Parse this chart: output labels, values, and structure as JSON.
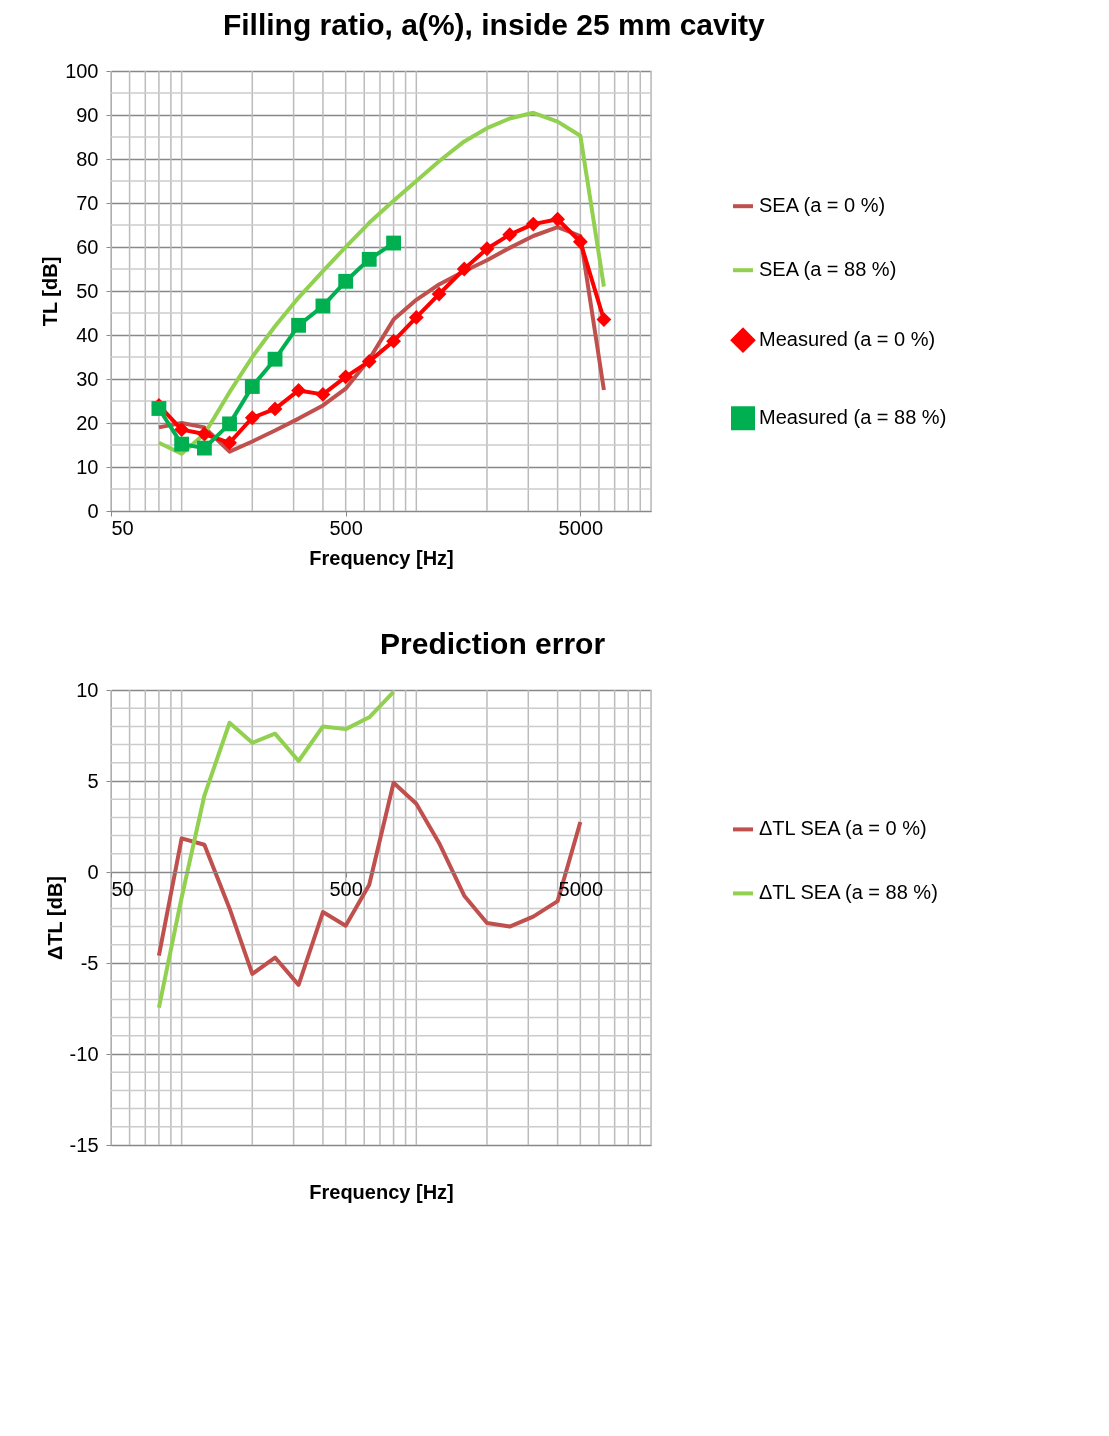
{
  "chart_data": [
    {
      "type": "line",
      "title": "Filling ratio, a(%), inside 25 mm cavity",
      "xlabel": "Frequency [Hz]",
      "ylabel": "TL [dB]",
      "log": "x",
      "xlim": [
        50,
        10000
      ],
      "xticks": [
        50,
        500,
        5000
      ],
      "ylim": [
        0,
        100
      ],
      "yticks": [
        0,
        10,
        20,
        30,
        40,
        50,
        60,
        70,
        80,
        90,
        100
      ],
      "grid": true,
      "legend": "right",
      "x": [
        80,
        100,
        125,
        160,
        200,
        250,
        315,
        400,
        500,
        630,
        800,
        1000,
        1250,
        1600,
        2000,
        2500,
        3150,
        4000,
        5000,
        6300
      ],
      "series": [
        {
          "name": "SEA (a = 0 %)",
          "color": "#c0504d",
          "marker": "none",
          "values": [
            19,
            20,
            19,
            13.5,
            15.8,
            18.3,
            21,
            24,
            27.8,
            34.5,
            43.5,
            48,
            51.5,
            54.5,
            57,
            59.8,
            62.5,
            64.5,
            62.5,
            27.5
          ]
        },
        {
          "name": "SEA (a = 88 %)",
          "color": "#92d050",
          "marker": "none",
          "values": [
            15.5,
            13,
            17.5,
            27,
            35,
            42,
            48.5,
            54.5,
            60,
            65.5,
            70.5,
            75,
            79.5,
            84,
            87,
            89.2,
            90.5,
            88.5,
            85.3,
            51
          ]
        },
        {
          "name": "Measured (a = 0 %)",
          "color": "#ff0000",
          "marker": "diamond",
          "values": [
            24,
            18.5,
            17.5,
            15.5,
            21.2,
            23.2,
            27.4,
            26.5,
            30.5,
            34,
            38.6,
            44,
            49.3,
            55,
            59.6,
            62.8,
            65.2,
            66.3,
            61.2,
            43.5
          ]
        },
        {
          "name": "Measured (a = 88 %)",
          "color": "#00b050",
          "marker": "square",
          "values": [
            23.3,
            15.2,
            14.3,
            19.8,
            28.3,
            34.5,
            42.2,
            46.6,
            52.2,
            57.2,
            60.9,
            null,
            null,
            null,
            null,
            null,
            null,
            null,
            null,
            null
          ]
        }
      ]
    },
    {
      "type": "line",
      "title": "Prediction error",
      "xlabel": "Frequency [Hz]",
      "ylabel": "ΔTL [dB]",
      "log": "x",
      "xlim": [
        50,
        10000
      ],
      "xticks": [
        50,
        500,
        5000
      ],
      "ylim": [
        -15,
        10
      ],
      "yticks": [
        -15,
        -10,
        -5,
        0,
        5,
        10
      ],
      "grid": true,
      "legend": "right",
      "x": [
        80,
        100,
        125,
        160,
        200,
        250,
        315,
        400,
        500,
        630,
        800,
        1000,
        1250,
        1600,
        2000,
        2500,
        3150,
        4000,
        5000
      ],
      "series": [
        {
          "name": "ΔTL SEA (a = 0 %)",
          "color": "#c0504d",
          "values": [
            -4.6,
            1.85,
            1.5,
            -2,
            -5.6,
            -4.7,
            -6.2,
            -2.2,
            -2.95,
            -0.7,
            4.9,
            3.75,
            1.6,
            -1.3,
            -2.8,
            -3,
            -2.45,
            -1.6,
            2.75
          ]
        },
        {
          "name": "ΔTL SEA (a = 88 %)",
          "color": "#92d050",
          "values": [
            -7.45,
            -1.4,
            4.2,
            8.2,
            7.1,
            7.6,
            6.1,
            8,
            7.85,
            8.5,
            9.9,
            null,
            null,
            null,
            null,
            null,
            null,
            null,
            null
          ]
        }
      ]
    }
  ]
}
